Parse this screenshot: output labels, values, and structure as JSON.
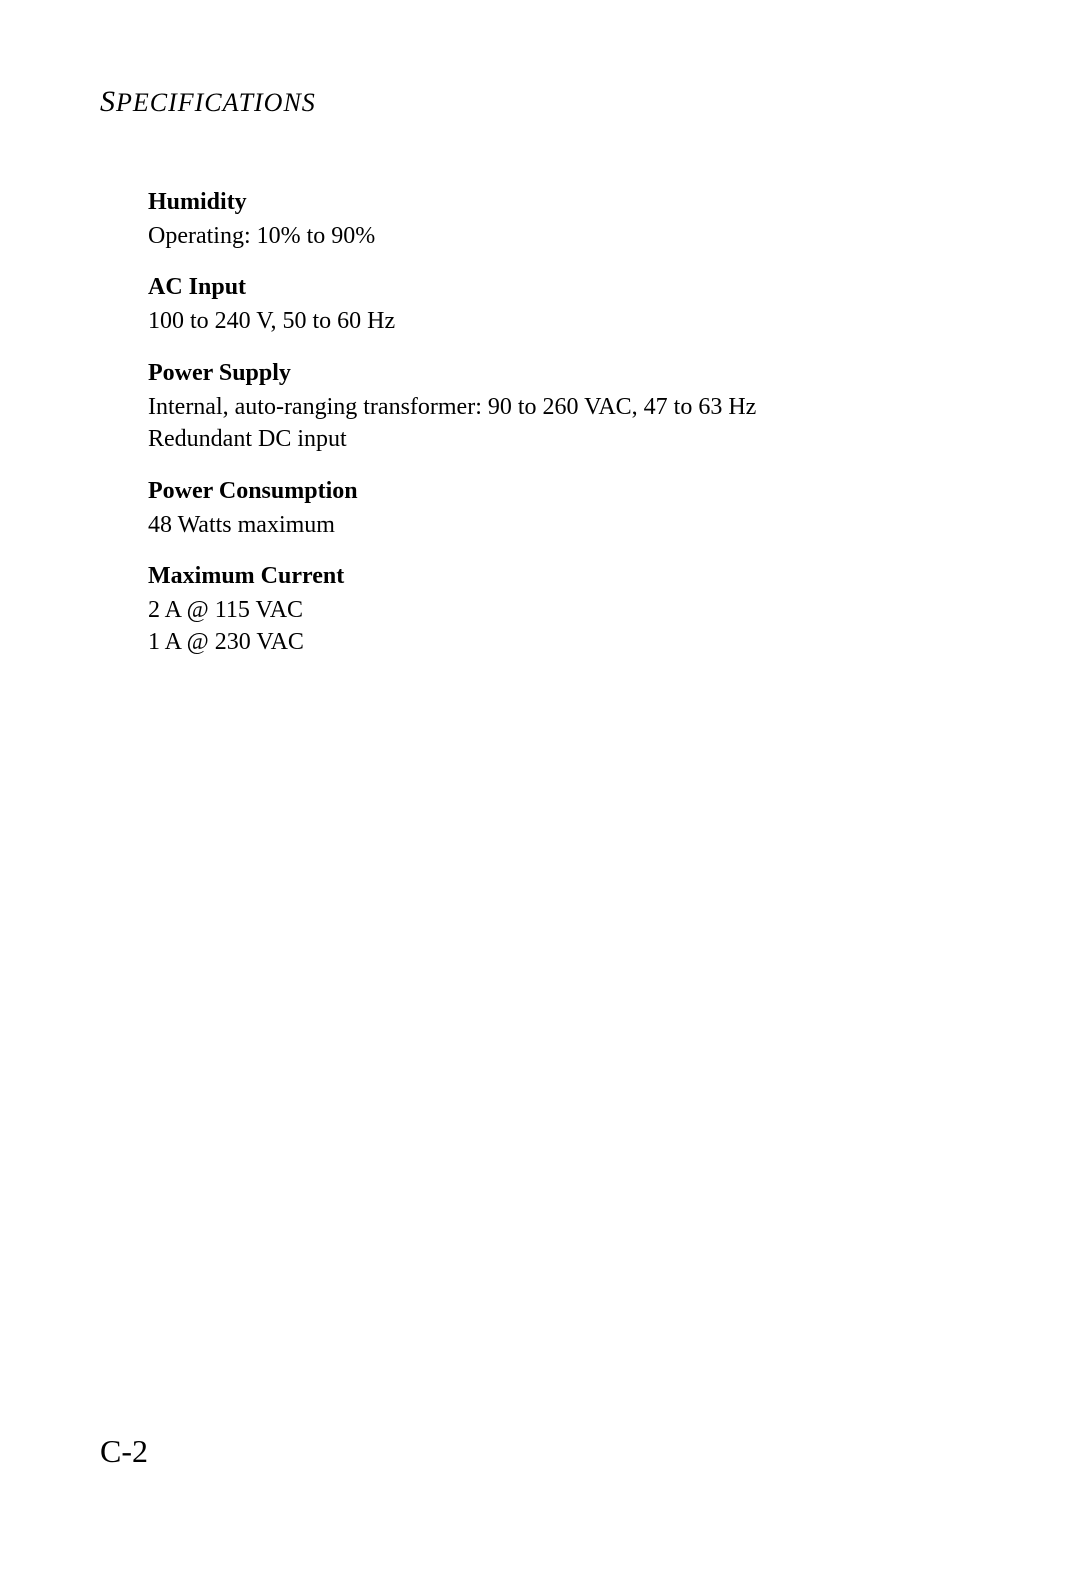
{
  "header": {
    "title_first": "S",
    "title_rest": "PECIFICATIONS"
  },
  "sections": {
    "humidity": {
      "heading": "Humidity",
      "line1": "Operating: 10% to 90%"
    },
    "ac_input": {
      "heading": "AC Input",
      "line1": "100 to 240 V, 50 to 60 Hz"
    },
    "power_supply": {
      "heading": "Power Supply",
      "line1": "Internal, auto-ranging transformer: 90 to 260 VAC, 47 to 63 Hz",
      "line2": "Redundant DC input"
    },
    "power_consumption": {
      "heading": "Power Consumption",
      "line1": "48 Watts maximum"
    },
    "maximum_current": {
      "heading": "Maximum Current",
      "line1": "2 A @ 115 VAC",
      "line2": "1 A @ 230 VAC"
    }
  },
  "page_number": "C-2"
}
